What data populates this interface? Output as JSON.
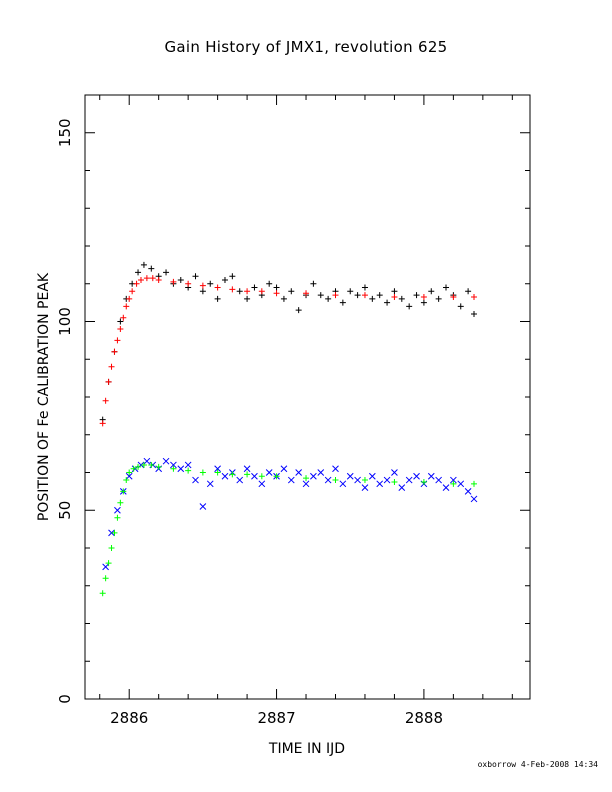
{
  "chart_data": {
    "type": "scatter",
    "title": "Gain History of JMX1, revolution 625",
    "xlabel": "TIME IN IJD",
    "ylabel": "POSITION OF Fe CALIBRATION PEAK",
    "xlim": [
      2885.7,
      2888.72
    ],
    "ylim": [
      0,
      160
    ],
    "x_ticks": [
      2886,
      2887,
      2888
    ],
    "y_ticks": [
      0,
      50,
      100,
      150
    ],
    "grid": false,
    "legend": "none",
    "series": [
      {
        "marker": "plus",
        "color": "#000000",
        "x": [
          2885.82,
          2885.86,
          2885.9,
          2885.94,
          2885.98,
          2886.02,
          2886.06,
          2886.1,
          2886.15,
          2886.2,
          2886.25,
          2886.3,
          2886.35,
          2886.4,
          2886.45,
          2886.5,
          2886.55,
          2886.6,
          2886.65,
          2886.7,
          2886.75,
          2886.8,
          2886.85,
          2886.9,
          2886.95,
          2887.0,
          2887.05,
          2887.1,
          2887.15,
          2887.2,
          2887.25,
          2887.3,
          2887.35,
          2887.4,
          2887.45,
          2887.5,
          2887.55,
          2887.6,
          2887.65,
          2887.7,
          2887.75,
          2887.8,
          2887.85,
          2887.9,
          2887.95,
          2888.0,
          2888.05,
          2888.1,
          2888.15,
          2888.2,
          2888.25,
          2888.3,
          2888.34
        ],
        "y": [
          74,
          84,
          92,
          100,
          106,
          110,
          113,
          115,
          114,
          112,
          113,
          110,
          111,
          109,
          112,
          108,
          110,
          106,
          111,
          112,
          108,
          106,
          109,
          107,
          110,
          109,
          106,
          108,
          103,
          107,
          110,
          107,
          106,
          108,
          105,
          108,
          107,
          109,
          106,
          107,
          105,
          108,
          106,
          104,
          107,
          105,
          108,
          106,
          109,
          107,
          104,
          108,
          102
        ]
      },
      {
        "marker": "plus",
        "color": "#ff0000",
        "x": [
          2885.82,
          2885.84,
          2885.86,
          2885.88,
          2885.9,
          2885.92,
          2885.94,
          2885.96,
          2885.98,
          2886.0,
          2886.02,
          2886.05,
          2886.08,
          2886.12,
          2886.16,
          2886.2,
          2886.3,
          2886.4,
          2886.5,
          2886.6,
          2886.7,
          2886.8,
          2886.9,
          2887.0,
          2887.2,
          2887.4,
          2887.6,
          2887.8,
          2888.0,
          2888.2,
          2888.34
        ],
        "y": [
          73,
          79,
          84,
          88,
          92,
          95,
          98,
          101,
          104,
          106,
          108,
          110,
          111,
          111.5,
          111.5,
          111,
          110.5,
          110,
          109.5,
          109,
          108.5,
          108,
          108,
          107.5,
          107.5,
          107,
          107,
          106.5,
          106.5,
          106.5,
          106.5
        ]
      },
      {
        "marker": "cross",
        "color": "#0000ff",
        "x": [
          2885.84,
          2885.88,
          2885.92,
          2885.96,
          2886.0,
          2886.04,
          2886.08,
          2886.12,
          2886.16,
          2886.2,
          2886.25,
          2886.3,
          2886.35,
          2886.4,
          2886.45,
          2886.5,
          2886.55,
          2886.6,
          2886.65,
          2886.7,
          2886.75,
          2886.8,
          2886.85,
          2886.9,
          2886.95,
          2887.0,
          2887.05,
          2887.1,
          2887.15,
          2887.2,
          2887.25,
          2887.3,
          2887.35,
          2887.4,
          2887.45,
          2887.5,
          2887.55,
          2887.6,
          2887.65,
          2887.7,
          2887.75,
          2887.8,
          2887.85,
          2887.9,
          2887.95,
          2888.0,
          2888.05,
          2888.1,
          2888.15,
          2888.2,
          2888.25,
          2888.3,
          2888.34
        ],
        "y": [
          35,
          44,
          50,
          55,
          59,
          61,
          62,
          63,
          62,
          61,
          63,
          62,
          61,
          62,
          58,
          51,
          57,
          61,
          59,
          60,
          58,
          61,
          59,
          57,
          60,
          59,
          61,
          58,
          60,
          57,
          59,
          60,
          58,
          61,
          57,
          59,
          58,
          56,
          59,
          57,
          58,
          60,
          56,
          58,
          59,
          57,
          59,
          58,
          56,
          58,
          57,
          55,
          53
        ]
      },
      {
        "marker": "plus",
        "color": "#00ff00",
        "x": [
          2885.82,
          2885.84,
          2885.86,
          2885.88,
          2885.9,
          2885.92,
          2885.94,
          2885.96,
          2885.98,
          2886.0,
          2886.03,
          2886.06,
          2886.1,
          2886.15,
          2886.2,
          2886.3,
          2886.4,
          2886.5,
          2886.6,
          2886.7,
          2886.8,
          2886.9,
          2887.0,
          2887.2,
          2887.4,
          2887.6,
          2887.8,
          2888.0,
          2888.2,
          2888.34
        ],
        "y": [
          28,
          32,
          36,
          40,
          44,
          48,
          52,
          55,
          58,
          60,
          61,
          61.5,
          62,
          62,
          61.5,
          61,
          60.5,
          60,
          60,
          59.5,
          59.5,
          59,
          59,
          58.5,
          58,
          58,
          57.5,
          57.5,
          57,
          57
        ]
      }
    ]
  },
  "footer": {
    "credit": "oxborrow  4-Feb-2008 14:34"
  }
}
